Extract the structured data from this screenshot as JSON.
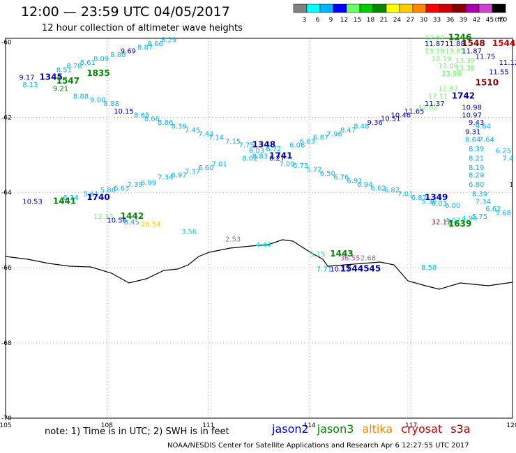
{
  "header": {
    "title": "12:00 — 23:59 UTC 04/05/2017",
    "subtitle": "12 hour collection of altimeter wave heights"
  },
  "legend": {
    "unit": "(ft)",
    "bins": [
      {
        "label": "3",
        "color": "#808080"
      },
      {
        "label": "6",
        "color": "#00ffff"
      },
      {
        "label": "9",
        "color": "#00b4ff"
      },
      {
        "label": "12",
        "color": "#0000ff"
      },
      {
        "label": "15",
        "color": "#66ff66"
      },
      {
        "label": "18",
        "color": "#00cc00"
      },
      {
        "label": "21",
        "color": "#008800"
      },
      {
        "label": "24",
        "color": "#ffff00"
      },
      {
        "label": "27",
        "color": "#ffcc00"
      },
      {
        "label": "30",
        "color": "#ff8800"
      },
      {
        "label": "33",
        "color": "#ff0000"
      },
      {
        "label": "36",
        "color": "#cc0000"
      },
      {
        "label": "39",
        "color": "#880000"
      },
      {
        "label": "42",
        "color": "#aa00aa"
      },
      {
        "label": "45",
        "color": "#cc44cc"
      },
      {
        "label": "70",
        "color": "#000000"
      }
    ]
  },
  "axes": {
    "lon_ticks": [
      "105",
      "108",
      "111",
      "114",
      "117",
      "120"
    ],
    "lat_ticks": [
      "-60",
      "-62",
      "-64",
      "-66",
      "-68",
      "-70"
    ]
  },
  "observations": [
    {
      "text": "9.17",
      "lon": 105.4,
      "lat": -61.0,
      "color": "#0000cc"
    },
    {
      "text": "1345",
      "lon": 106.0,
      "lat": -61.0,
      "color": "#0000aa"
    },
    {
      "text": "1547",
      "lon": 106.5,
      "lat": -61.1,
      "color": "#008800"
    },
    {
      "text": "8.13",
      "lon": 105.5,
      "lat": -61.2,
      "color": "#00b4ff"
    },
    {
      "text": "8.51",
      "lon": 106.5,
      "lat": -60.8,
      "color": "#00b4ff"
    },
    {
      "text": "8.78",
      "lon": 106.8,
      "lat": -60.7,
      "color": "#00b4ff"
    },
    {
      "text": "8.61",
      "lon": 107.2,
      "lat": -60.6,
      "color": "#00b4ff"
    },
    {
      "text": "8.09",
      "lon": 107.6,
      "lat": -60.5,
      "color": "#00b4ff"
    },
    {
      "text": "8.88",
      "lon": 108.1,
      "lat": -60.4,
      "color": "#00b4ff"
    },
    {
      "text": "9.69",
      "lon": 108.4,
      "lat": -60.3,
      "color": "#0000cc"
    },
    {
      "text": "8.87",
      "lon": 108.9,
      "lat": -60.2,
      "color": "#00b4ff"
    },
    {
      "text": "8.66",
      "lon": 109.2,
      "lat": -60.1,
      "color": "#00b4ff"
    },
    {
      "text": "8.29",
      "lon": 109.6,
      "lat": -60.0,
      "color": "#00b4ff"
    },
    {
      "text": "1835",
      "lon": 107.4,
      "lat": -60.9,
      "color": "#008800"
    },
    {
      "text": "9.21",
      "lon": 106.4,
      "lat": -61.3,
      "color": "#008800"
    },
    {
      "text": "8.88",
      "lon": 107.0,
      "lat": -61.5,
      "color": "#00b4ff"
    },
    {
      "text": "9.00",
      "lon": 107.5,
      "lat": -61.6,
      "color": "#00b4ff"
    },
    {
      "text": "8.88",
      "lon": 107.9,
      "lat": -61.7,
      "color": "#00b4ff"
    },
    {
      "text": "10.15",
      "lon": 108.2,
      "lat": -61.9,
      "color": "#0000cc"
    },
    {
      "text": "8.65",
      "lon": 108.8,
      "lat": -62.0,
      "color": "#00b4ff"
    },
    {
      "text": "8.66",
      "lon": 109.1,
      "lat": -62.1,
      "color": "#00b4ff"
    },
    {
      "text": "8.86",
      "lon": 109.5,
      "lat": -62.2,
      "color": "#00b4ff"
    },
    {
      "text": "8.39",
      "lon": 109.9,
      "lat": -62.3,
      "color": "#00b4ff"
    },
    {
      "text": "7.45",
      "lon": 110.3,
      "lat": -62.4,
      "color": "#00b4ff"
    },
    {
      "text": "7.43",
      "lon": 110.7,
      "lat": -62.5,
      "color": "#00b4ff"
    },
    {
      "text": "7.14",
      "lon": 111.0,
      "lat": -62.6,
      "color": "#00b4ff"
    },
    {
      "text": "7.15",
      "lon": 111.5,
      "lat": -62.7,
      "color": "#00b4ff"
    },
    {
      "text": "7.75",
      "lon": 111.9,
      "lat": -62.8,
      "color": "#00b4ff"
    },
    {
      "text": "1348",
      "lon": 112.3,
      "lat": -62.8,
      "color": "#0000aa"
    },
    {
      "text": "8.03",
      "lon": 112.2,
      "lat": -62.95,
      "color": "#00b4ff"
    },
    {
      "text": "8.02",
      "lon": 112.0,
      "lat": -63.15,
      "color": "#00b4ff"
    },
    {
      "text": "8.83",
      "lon": 112.3,
      "lat": -63.1,
      "color": "#00b4ff"
    },
    {
      "text": "6.72",
      "lon": 112.7,
      "lat": -62.9,
      "color": "#00b4ff"
    },
    {
      "text": "1741",
      "lon": 112.8,
      "lat": -63.1,
      "color": "#0000aa"
    },
    {
      "text": "6.27",
      "lon": 112.8,
      "lat": -63.15,
      "color": "#0000aa"
    },
    {
      "text": "7.09",
      "lon": 113.1,
      "lat": -63.3,
      "color": "#00b4ff"
    },
    {
      "text": "6.06",
      "lon": 113.4,
      "lat": -62.8,
      "color": "#00b4ff"
    },
    {
      "text": "6.83",
      "lon": 113.7,
      "lat": -62.7,
      "color": "#00b4ff"
    },
    {
      "text": "6.87",
      "lon": 114.1,
      "lat": -62.6,
      "color": "#00b4ff"
    },
    {
      "text": "7.96",
      "lon": 114.5,
      "lat": -62.5,
      "color": "#00b4ff"
    },
    {
      "text": "8.47",
      "lon": 114.9,
      "lat": -62.4,
      "color": "#00b4ff"
    },
    {
      "text": "8.48",
      "lon": 115.3,
      "lat": -62.3,
      "color": "#00b4ff"
    },
    {
      "text": "9.36",
      "lon": 115.7,
      "lat": -62.2,
      "color": "#0000cc"
    },
    {
      "text": "10.51",
      "lon": 116.1,
      "lat": -62.1,
      "color": "#0000cc"
    },
    {
      "text": "10.46",
      "lon": 116.4,
      "lat": -62.0,
      "color": "#0000cc"
    },
    {
      "text": "11.65",
      "lon": 116.8,
      "lat": -61.9,
      "color": "#0000cc"
    },
    {
      "text": "12.62",
      "lon": 117.2,
      "lat": -61.8,
      "color": "#66ff66"
    },
    {
      "text": "11.37",
      "lon": 117.4,
      "lat": -61.7,
      "color": "#0000cc"
    },
    {
      "text": "6.73",
      "lon": 113.5,
      "lat": -63.35,
      "color": "#00b4ff"
    },
    {
      "text": "5.72",
      "lon": 113.9,
      "lat": -63.45,
      "color": "#00b4ff"
    },
    {
      "text": "6.50",
      "lon": 114.3,
      "lat": -63.55,
      "color": "#00b4ff"
    },
    {
      "text": "6.76",
      "lon": 114.7,
      "lat": -63.65,
      "color": "#00b4ff"
    },
    {
      "text": "6.91",
      "lon": 115.1,
      "lat": -63.75,
      "color": "#00b4ff"
    },
    {
      "text": "6.94",
      "lon": 115.4,
      "lat": -63.85,
      "color": "#00b4ff"
    },
    {
      "text": "6.62",
      "lon": 115.8,
      "lat": -63.95,
      "color": "#00b4ff"
    },
    {
      "text": "6.82",
      "lon": 116.2,
      "lat": -64.0,
      "color": "#00b4ff"
    },
    {
      "text": "7.01",
      "lon": 116.6,
      "lat": -64.1,
      "color": "#00b4ff"
    },
    {
      "text": "6.87",
      "lon": 117.0,
      "lat": -64.2,
      "color": "#00b4ff"
    },
    {
      "text": "5.36",
      "lon": 117.3,
      "lat": -64.3,
      "color": "#00b4ff"
    },
    {
      "text": "1349",
      "lon": 117.4,
      "lat": -64.2,
      "color": "#0000aa"
    },
    {
      "text": "6.03",
      "lon": 117.6,
      "lat": -64.35,
      "color": "#00b4ff"
    },
    {
      "text": "6.00",
      "lon": 118.0,
      "lat": -64.4,
      "color": "#00b4ff"
    },
    {
      "text": "7.01",
      "lon": 111.1,
      "lat": -63.3,
      "color": "#00b4ff"
    },
    {
      "text": "6.60",
      "lon": 110.7,
      "lat": -63.4,
      "color": "#00b4ff"
    },
    {
      "text": "7.37",
      "lon": 110.3,
      "lat": -63.5,
      "color": "#00b4ff"
    },
    {
      "text": "6.97",
      "lon": 109.9,
      "lat": -63.6,
      "color": "#00b4ff"
    },
    {
      "text": "7.34",
      "lon": 109.5,
      "lat": -63.65,
      "color": "#00b4ff"
    },
    {
      "text": "6.99",
      "lon": 109.0,
      "lat": -63.8,
      "color": "#00b4ff"
    },
    {
      "text": "7.39",
      "lon": 108.6,
      "lat": -63.85,
      "color": "#00b4ff"
    },
    {
      "text": "6.63",
      "lon": 108.2,
      "lat": -63.95,
      "color": "#00b4ff"
    },
    {
      "text": "5.86",
      "lon": 107.8,
      "lat": -64.0,
      "color": "#00b4ff"
    },
    {
      "text": "5.61",
      "lon": 107.3,
      "lat": -64.1,
      "color": "#00b4ff"
    },
    {
      "text": "6.34",
      "lon": 106.7,
      "lat": -64.2,
      "color": "#00b4ff"
    },
    {
      "text": "1740",
      "lon": 107.4,
      "lat": -64.2,
      "color": "#0000aa"
    },
    {
      "text": "10.53",
      "lon": 105.5,
      "lat": -64.3,
      "color": "#0000cc"
    },
    {
      "text": "1441",
      "lon": 106.4,
      "lat": -64.3,
      "color": "#008800"
    },
    {
      "text": "12.33",
      "lon": 107.6,
      "lat": -64.7,
      "color": "#66ff66"
    },
    {
      "text": "1442",
      "lon": 108.4,
      "lat": -64.7,
      "color": "#008800"
    },
    {
      "text": "10.56",
      "lon": 108.0,
      "lat": -64.8,
      "color": "#0000cc"
    },
    {
      "text": "8.45",
      "lon": 108.5,
      "lat": -64.85,
      "color": "#00b4ff"
    },
    {
      "text": "26.54",
      "lon": 109.0,
      "lat": -64.9,
      "color": "#ffcc00"
    },
    {
      "text": "3.56",
      "lon": 110.2,
      "lat": -65.1,
      "color": "#00e0e0"
    },
    {
      "text": "2.53",
      "lon": 111.5,
      "lat": -65.3,
      "color": "#808080"
    },
    {
      "text": "4.44",
      "lon": 112.4,
      "lat": -65.45,
      "color": "#00e0e0"
    },
    {
      "text": "5.15",
      "lon": 114.0,
      "lat": -65.7,
      "color": "#00e0e0"
    },
    {
      "text": "1443",
      "lon": 114.6,
      "lat": -65.7,
      "color": "#008800"
    },
    {
      "text": "36.55",
      "lon": 114.9,
      "lat": -65.8,
      "color": "#cc44cc"
    },
    {
      "text": "2.68",
      "lon": 115.5,
      "lat": -65.8,
      "color": "#808080"
    },
    {
      "text": "7.71",
      "lon": 114.2,
      "lat": -66.1,
      "color": "#00b4ff"
    },
    {
      "text": "10.17",
      "lon": 114.6,
      "lat": -66.1,
      "color": "#0000cc"
    },
    {
      "text": "1544545",
      "lon": 114.9,
      "lat": -66.1,
      "color": "#0000aa"
    },
    {
      "text": "8.58",
      "lon": 117.3,
      "lat": -66.05,
      "color": "#00b4ff"
    },
    {
      "text": "12.82",
      "lon": 117.4,
      "lat": -59.95,
      "color": "#66ff66"
    },
    {
      "text": "1246",
      "lon": 118.1,
      "lat": -59.95,
      "color": "#008800"
    },
    {
      "text": "1544",
      "lon": 119.4,
      "lat": -60.1,
      "color": "#cc0000"
    },
    {
      "text": "11.87",
      "lon": 117.4,
      "lat": -60.1,
      "color": "#0000cc"
    },
    {
      "text": "11.88",
      "lon": 118.0,
      "lat": -60.1,
      "color": "#0000cc"
    },
    {
      "text": "1548",
      "lon": 118.5,
      "lat": -60.1,
      "color": "#880000"
    },
    {
      "text": "13.19",
      "lon": 117.4,
      "lat": -60.3,
      "color": "#66ff66"
    },
    {
      "text": "13.85",
      "lon": 118.0,
      "lat": -60.3,
      "color": "#66ff66"
    },
    {
      "text": "11.87",
      "lon": 118.5,
      "lat": -60.3,
      "color": "#0000cc"
    },
    {
      "text": "11.75",
      "lon": 118.9,
      "lat": -60.45,
      "color": "#0000cc"
    },
    {
      "text": "12.19",
      "lon": 117.6,
      "lat": -60.5,
      "color": "#66ff66"
    },
    {
      "text": "13.39",
      "lon": 118.3,
      "lat": -60.55,
      "color": "#66ff66"
    },
    {
      "text": "11.12",
      "lon": 119.6,
      "lat": -60.6,
      "color": "#0000cc"
    },
    {
      "text": "13.09",
      "lon": 117.8,
      "lat": -60.7,
      "color": "#66ff66"
    },
    {
      "text": "13.38",
      "lon": 118.3,
      "lat": -60.75,
      "color": "#66ff66"
    },
    {
      "text": "11.55",
      "lon": 119.3,
      "lat": -60.85,
      "color": "#0000cc"
    },
    {
      "text": "13.98",
      "lon": 117.9,
      "lat": -60.9,
      "color": "#66ff66"
    },
    {
      "text": "1510",
      "lon": 118.9,
      "lat": -61.15,
      "color": "#880000"
    },
    {
      "text": "12.87",
      "lon": 117.8,
      "lat": -61.3,
      "color": "#66ff66"
    },
    {
      "text": "17.11",
      "lon": 117.5,
      "lat": -61.5,
      "color": "#66ff66"
    },
    {
      "text": "1742",
      "lon": 118.2,
      "lat": -61.5,
      "color": "#0000aa"
    },
    {
      "text": "10.98",
      "lon": 118.5,
      "lat": -61.8,
      "color": "#0000cc"
    },
    {
      "text": "10.97",
      "lon": 118.5,
      "lat": -62.0,
      "color": "#0000cc"
    },
    {
      "text": "9.43",
      "lon": 118.7,
      "lat": -62.2,
      "color": "#0000cc"
    },
    {
      "text": "9.64",
      "lon": 118.9,
      "lat": -62.3,
      "color": "#00b4ff"
    },
    {
      "text": "9.31",
      "lon": 118.6,
      "lat": -62.45,
      "color": "#0000cc"
    },
    {
      "text": "8.64",
      "lon": 118.6,
      "lat": -62.65,
      "color": "#00b4ff"
    },
    {
      "text": "7.64",
      "lon": 119.0,
      "lat": -62.65,
      "color": "#00b4ff"
    },
    {
      "text": "8.39",
      "lon": 118.7,
      "lat": -62.9,
      "color": "#00b4ff"
    },
    {
      "text": "6.25",
      "lon": 119.5,
      "lat": -62.95,
      "color": "#00b4ff"
    },
    {
      "text": "8.21",
      "lon": 118.7,
      "lat": -63.15,
      "color": "#00b4ff"
    },
    {
      "text": "7.4",
      "lon": 119.7,
      "lat": -63.15,
      "color": "#00b4ff"
    },
    {
      "text": "8.19",
      "lon": 118.7,
      "lat": -63.4,
      "color": "#00b4ff"
    },
    {
      "text": "8.29",
      "lon": 118.7,
      "lat": -63.6,
      "color": "#00b4ff"
    },
    {
      "text": "6.80",
      "lon": 118.7,
      "lat": -63.85,
      "color": "#00b4ff"
    },
    {
      "text": "1",
      "lon": 119.9,
      "lat": -63.85,
      "color": "#cc0000"
    },
    {
      "text": "8.39",
      "lon": 118.8,
      "lat": -64.1,
      "color": "#00b4ff"
    },
    {
      "text": "7.34",
      "lon": 118.9,
      "lat": -64.3,
      "color": "#00b4ff"
    },
    {
      "text": "6.62",
      "lon": 119.2,
      "lat": -64.5,
      "color": "#00b4ff"
    },
    {
      "text": "5.68",
      "lon": 119.5,
      "lat": -64.6,
      "color": "#00b4ff"
    },
    {
      "text": "5.75",
      "lon": 118.8,
      "lat": -64.7,
      "color": "#00b4ff"
    },
    {
      "text": "4.96",
      "lon": 118.5,
      "lat": -64.75,
      "color": "#00e0e0"
    },
    {
      "text": "4.07",
      "lon": 118.0,
      "lat": -64.8,
      "color": "#00e0e0"
    },
    {
      "text": "32.12",
      "lon": 117.6,
      "lat": -64.85,
      "color": "#cc0000"
    },
    {
      "text": "1639",
      "lon": 118.1,
      "lat": -64.9,
      "color": "#008800"
    }
  ],
  "footer": {
    "note": "note:  1) Time is in UTC;  2) SWH is in feet",
    "satellites": [
      {
        "name": "jason2",
        "color": "#0000cc"
      },
      {
        "name": "jason3",
        "color": "#008800"
      },
      {
        "name": "altika",
        "color": "#ff8800"
      },
      {
        "name": "cryosat",
        "color": "#cc0000"
      },
      {
        "name": "s3a",
        "color": "#990000"
      }
    ],
    "credit": "NOAA/NESDIS Center for Satellite Applications and Research     Apr  6 12:27:55 UTC 2017"
  }
}
